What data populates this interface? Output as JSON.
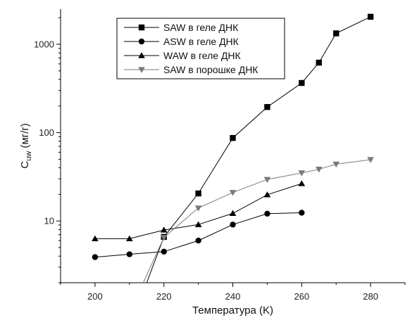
{
  "chart_data": {
    "type": "line",
    "xlabel": "Температура (K)",
    "ylabel_main": "C",
    "ylabel_sub": "uw",
    "ylabel_unit": " (мг/г)",
    "xlim": [
      190,
      290
    ],
    "ylim": [
      2.0,
      2500
    ],
    "yscale": "log",
    "x_ticks": [
      200,
      220,
      240,
      260,
      280
    ],
    "x_tick_labels": [
      "200",
      "220",
      "240",
      "260",
      "280"
    ],
    "y_ticks": [
      10,
      100,
      1000
    ],
    "y_tick_labels": [
      "10",
      "100",
      "1000"
    ],
    "legend_position": "top-center",
    "series": [
      {
        "name": "SAW  в геле ДНК",
        "marker": "square",
        "color": "#000000",
        "x": [
          215,
          220,
          230,
          240,
          250,
          260,
          265,
          270,
          280
        ],
        "y": [
          2.0,
          6.6,
          20.5,
          87,
          195,
          365,
          620,
          1330,
          2050
        ]
      },
      {
        "name": "ASW в геле ДНК",
        "marker": "circle",
        "color": "#000000",
        "x": [
          200,
          210,
          220,
          230,
          240,
          250,
          260
        ],
        "y": [
          3.9,
          4.2,
          4.5,
          6.0,
          9.1,
          12.1,
          12.4
        ]
      },
      {
        "name": "WAW  в геле ДНК",
        "marker": "triangle-up",
        "color": "#000000",
        "x": [
          200,
          210,
          220,
          230,
          240,
          250,
          260
        ],
        "y": [
          6.3,
          6.3,
          7.9,
          9.1,
          12.2,
          19.8,
          26.5
        ]
      },
      {
        "name": "SAW в порошке ДНК",
        "marker": "triangle-down",
        "color": "#7a7a7a",
        "x": [
          214,
          220,
          230,
          240,
          250,
          260,
          265,
          270,
          280
        ],
        "y": [
          2.0,
          6.5,
          14.0,
          21.0,
          29.5,
          35.0,
          38.5,
          44.0,
          49.5
        ]
      }
    ]
  }
}
